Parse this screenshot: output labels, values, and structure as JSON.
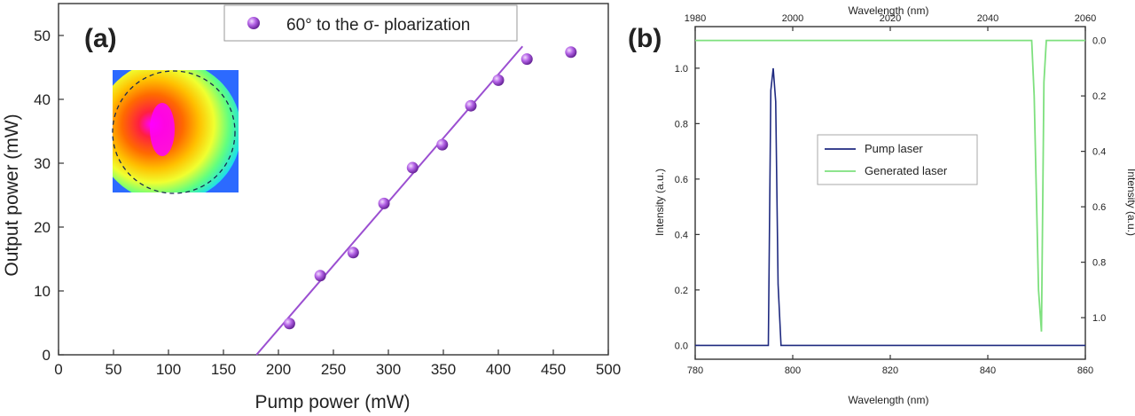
{
  "chart_data": [
    {
      "panel_label": "(a)",
      "type": "scatter",
      "xlabel": "Pump power (mW)",
      "ylabel": "Output power (mW)",
      "xlim": [
        0,
        500
      ],
      "ylim": [
        0,
        55
      ],
      "xticks": [
        0,
        50,
        100,
        150,
        200,
        250,
        300,
        350,
        400,
        450,
        500
      ],
      "yticks": [
        0,
        10,
        20,
        30,
        40,
        50
      ],
      "legend_position": "top-right",
      "series": [
        {
          "name": "60° to the σ- ploarization",
          "marker": "sphere",
          "color": "#a34fd6",
          "x": [
            210,
            238,
            268,
            296,
            322,
            349,
            375,
            400,
            426,
            466
          ],
          "y": [
            4.9,
            12.4,
            16.0,
            23.7,
            29.3,
            32.9,
            39.0,
            43.0,
            46.3,
            47.4
          ]
        }
      ],
      "fit_line": {
        "color": "#9b4fd1",
        "x": [
          180,
          422
        ],
        "y": [
          0,
          48.3
        ]
      },
      "inset": {
        "kind": "beam-profile-heatmap",
        "dashed_circle": true,
        "colormap": [
          "#2050ff",
          "#00d0ff",
          "#40ff80",
          "#ffff00",
          "#ff9000",
          "#ff2000",
          "#ff00ff"
        ]
      }
    },
    {
      "panel_label": "(b)",
      "type": "line",
      "xlabel": "Wavelength (nm)",
      "x2label": "Wavelength (nm)",
      "ylabel": "Intensity (a.u.)",
      "y2label": "Intensity (a.u.)",
      "xlim": [
        780,
        860
      ],
      "x2lim": [
        1980,
        2060
      ],
      "ylim": [
        -0.05,
        1.15
      ],
      "y2lim": [
        1.15,
        -0.05
      ],
      "xticks": [
        780,
        800,
        820,
        840,
        860
      ],
      "x2ticks": [
        1980,
        2000,
        2020,
        2040,
        2060
      ],
      "yticks": [
        0.0,
        0.2,
        0.4,
        0.6,
        0.8,
        1.0
      ],
      "y2ticks": [
        0.0,
        0.2,
        0.4,
        0.6,
        0.8,
        1.0
      ],
      "tick_decimals": 1,
      "legend_position": "center",
      "series": [
        {
          "name": "Pump laser",
          "axes": "bottom-left",
          "color": "#1f2a80",
          "x": [
            780,
            795,
            795.5,
            796,
            796.5,
            797,
            797.6,
            860
          ],
          "y": [
            0,
            0,
            0.92,
            1.0,
            0.88,
            0.22,
            0,
            0
          ]
        },
        {
          "name": "Generated laser",
          "axes": "top-right",
          "color": "#7ee07e",
          "x": [
            1980,
            2049,
            2049.5,
            2050.4,
            2051,
            2051.5,
            2052,
            2060
          ],
          "y": [
            0,
            0,
            0.2,
            0.9,
            1.05,
            0.15,
            0,
            0
          ]
        }
      ]
    }
  ]
}
